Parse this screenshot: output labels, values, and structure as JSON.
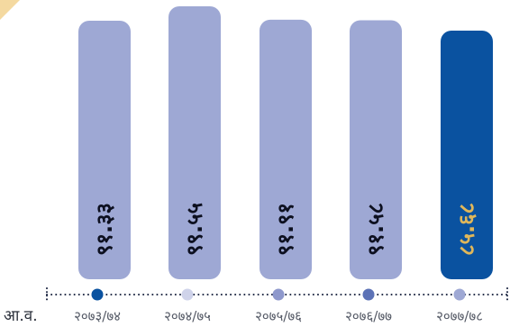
{
  "chart_data": {
    "type": "bar",
    "title": "",
    "xlabel": "",
    "ylabel": "",
    "axis_prefix": "आ.व.",
    "categories": [
      "२०७३/७४",
      "२०७४/७५",
      "२०७५/७६",
      "२०७६/७७",
      "२०७७/७८"
    ],
    "values": [
      91.33,
      99.55,
      91.91,
      91.58,
      85.68
    ],
    "value_labels": [
      "९१.३३",
      "९९.५५",
      "९१.९१",
      "९१.५८",
      "८५.६८"
    ],
    "ylim": [
      0,
      100
    ],
    "grid": false,
    "legend": "none",
    "highlight_index": 4,
    "colors": {
      "bar": "#9ea8d4",
      "bar_highlight": "#0a52a0",
      "label": "#0d1020",
      "label_highlight": "#e0b75a",
      "dot_colors": [
        "#0a52a0",
        "#cfd3ea",
        "#8e98cc",
        "#5c72b6",
        "#9ea8d4"
      ],
      "dotted_line": "#1a2440",
      "corner_accent": "#f4d9a0"
    }
  }
}
